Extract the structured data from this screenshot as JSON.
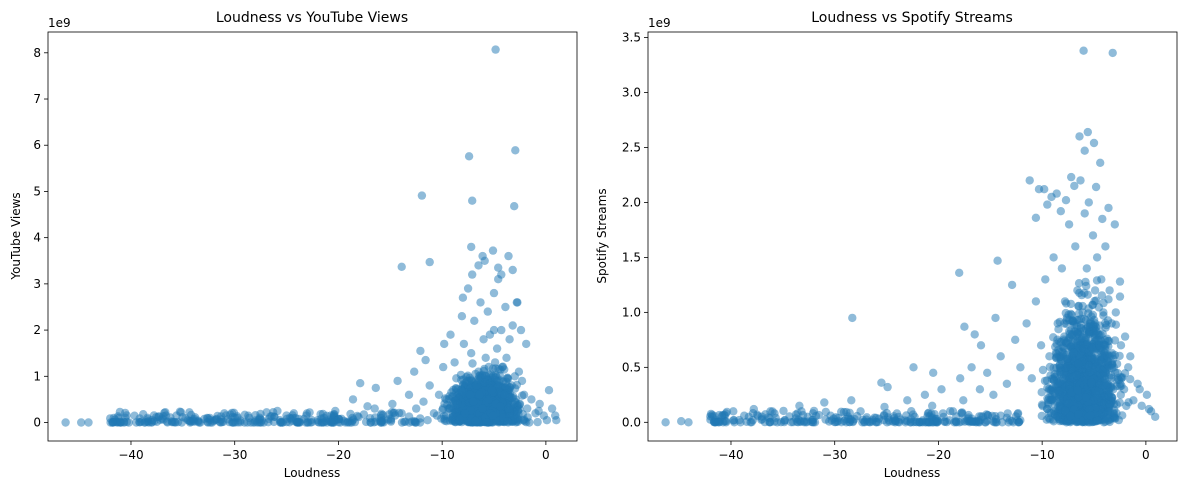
{
  "chart_data": [
    {
      "type": "scatter",
      "title": "Loudness vs YouTube Views",
      "xlabel": "Loudness",
      "ylabel": "YouTube Views",
      "y_offset_label": "1e9",
      "xlim": [
        -48,
        3
      ],
      "ylim": [
        -0.4,
        8.45
      ],
      "x_ticks": [
        -40,
        -30,
        -20,
        -10,
        0
      ],
      "x_tick_labels": [
        "−40",
        "−30",
        "−20",
        "−10",
        "0"
      ],
      "y_ticks": [
        0,
        1,
        2,
        3,
        4,
        5,
        6,
        7,
        8
      ],
      "y_tick_labels": [
        "0",
        "1",
        "2",
        "3",
        "4",
        "5",
        "6",
        "7",
        "8"
      ],
      "grid": false,
      "color": "#1f77b4",
      "alpha": 0.5,
      "points": {
        "x": [
          -46.3,
          -44.8,
          -44.1,
          -41.8,
          -41.5,
          -41.0,
          -39.2,
          -38.0,
          -36.5,
          -35.1,
          -34.0,
          -32.4,
          -31.0,
          -30.5,
          -28.6,
          -27.4,
          -25.6,
          -24.3,
          -23.1,
          -22.0,
          -21.4,
          -20.3,
          -19.7,
          -18.6,
          -17.9,
          -17.2,
          -16.5,
          -16.4,
          -15.9,
          -14.8,
          -14.3,
          -13.9,
          -13.2,
          -12.7,
          -12.5,
          -12.1,
          -11.8,
          -11.6,
          -11.2,
          -10.8,
          -10.3,
          -9.9,
          -9.6,
          -9.2,
          -8.8,
          -8.5,
          -8.1,
          -7.9,
          -7.6,
          -7.5,
          -7.3,
          -7.2,
          -7.1,
          -6.9,
          -6.7,
          -6.5,
          -6.3,
          -6.1,
          -6.0,
          -5.9,
          -5.8,
          -5.6,
          -5.5,
          -5.4,
          -5.2,
          -5.0,
          -4.9,
          -4.8,
          -4.7,
          -4.6,
          -4.5,
          -4.3,
          -4.2,
          -4.0,
          -3.9,
          -3.8,
          -3.6,
          -3.5,
          -3.3,
          -3.2,
          -3.0,
          -2.9,
          -2.8,
          -2.6,
          -2.5,
          -2.3,
          -2.1,
          -1.8,
          -1.4,
          -1.0,
          -0.6,
          -0.2,
          0.3,
          0.6,
          1.0,
          -7.0,
          -6.2,
          -5.3,
          -4.4,
          -3.4,
          -2.7,
          -8.6,
          -9.4,
          -10.5,
          -6.6,
          -5.7,
          -4.1,
          -3.7,
          -2.2,
          -1.6,
          -0.8,
          -12.9,
          -11.4,
          -9.0,
          -8.3,
          -7.8,
          -6.8,
          -6.4,
          -5.1,
          -4.85,
          -7.4,
          -2.95,
          -3.05,
          -11.95,
          -7.1,
          -2.75,
          -7.2,
          -5.1,
          -4.6,
          -13.9,
          -11.2,
          -6.1,
          -3.6,
          -6.5,
          -4.3,
          -8.0,
          -5.0,
          -3.2,
          -2.4,
          -9.8,
          -1.9,
          -0.7,
          0.1,
          0.9
        ],
        "y": [
          0.0,
          0.0,
          0.0,
          0.0,
          0.01,
          0.0,
          0.01,
          0.0,
          0.02,
          0.0,
          0.03,
          0.1,
          0.2,
          0.01,
          0.1,
          0.05,
          0.0,
          0.2,
          0.15,
          0.05,
          0.1,
          0.25,
          0.08,
          0.5,
          0.85,
          0.35,
          0.3,
          0.75,
          0.1,
          0.4,
          0.9,
          0.2,
          0.6,
          1.1,
          0.3,
          1.55,
          0.45,
          1.35,
          0.8,
          0.2,
          0.6,
          1.2,
          0.5,
          1.9,
          1.3,
          0.4,
          2.3,
          1.7,
          0.9,
          2.9,
          0.6,
          1.5,
          3.2,
          2.2,
          0.8,
          1.1,
          2.6,
          0.3,
          1.8,
          3.5,
          1.0,
          2.4,
          0.5,
          1.9,
          0.7,
          2.8,
          1.3,
          0.4,
          1.6,
          3.1,
          0.9,
          2.0,
          1.2,
          0.6,
          2.5,
          1.4,
          0.3,
          1.8,
          0.8,
          3.3,
          1.0,
          0.5,
          2.6,
          1.1,
          0.4,
          0.9,
          0.6,
          0.3,
          0.5,
          0.2,
          0.4,
          0.15,
          0.7,
          0.3,
          0.05,
          0.45,
          0.65,
          0.2,
          0.35,
          0.55,
          0.25,
          0.1,
          0.3,
          0.15,
          0.05,
          0.0,
          0.1,
          0.02,
          0.05,
          0.0,
          0.01,
          0.02,
          0.05,
          0.12,
          0.08,
          0.2,
          0.03,
          0.6,
          0.15,
          8.07,
          5.76,
          5.89,
          4.68,
          4.91,
          4.8,
          2.6,
          3.8,
          3.72,
          3.35,
          3.37,
          3.47,
          3.6,
          3.6,
          3.4,
          3.2,
          2.7,
          2.0,
          2.1,
          2.0,
          1.7,
          1.7,
          0.25,
          0.05,
          0.15
        ]
      }
    },
    {
      "type": "scatter",
      "title": "Loudness vs Spotify Streams",
      "xlabel": "Loudness",
      "ylabel": "Spotify Streams",
      "y_offset_label": "1e9",
      "xlim": [
        -48,
        3
      ],
      "ylim": [
        -0.17,
        3.55
      ],
      "x_ticks": [
        -40,
        -30,
        -20,
        -10,
        0
      ],
      "x_tick_labels": [
        "−40",
        "−30",
        "−20",
        "−10",
        "0"
      ],
      "y_ticks": [
        0,
        0.5,
        1.0,
        1.5,
        2.0,
        2.5,
        3.0,
        3.5
      ],
      "y_tick_labels": [
        "0.0",
        "0.5",
        "1.0",
        "1.5",
        "2.0",
        "2.5",
        "3.0",
        "3.5"
      ],
      "grid": false,
      "color": "#1f77b4",
      "alpha": 0.5,
      "points": {
        "x": [
          -46.3,
          -44.8,
          -44.1,
          -41.8,
          -41.5,
          -40.5,
          -39.2,
          -37.8,
          -37.0,
          -36.2,
          -34.8,
          -33.4,
          -32.6,
          -31.0,
          -30.4,
          -28.4,
          -27.5,
          -26.0,
          -25.2,
          -24.0,
          -23.0,
          -22.3,
          -21.3,
          -20.6,
          -19.7,
          -18.6,
          -17.9,
          -17.6,
          -16.8,
          -16.0,
          -15.3,
          -14.7,
          -14.0,
          -13.4,
          -12.6,
          -12.1,
          -11.5,
          -11.0,
          -10.6,
          -10.1,
          -9.7,
          -9.3,
          -8.9,
          -8.5,
          -8.1,
          -7.8,
          -7.4,
          -7.1,
          -6.8,
          -6.6,
          -6.3,
          -6.1,
          -5.9,
          -5.7,
          -5.5,
          -5.3,
          -5.1,
          -4.9,
          -4.7,
          -4.5,
          -4.3,
          -4.1,
          -3.9,
          -3.7,
          -3.5,
          -3.3,
          -3.1,
          -2.9,
          -2.7,
          -2.4,
          -2.1,
          -1.7,
          -1.2,
          -0.8,
          -0.4,
          0.1,
          0.5,
          0.9,
          -6.0,
          -3.2,
          -6.4,
          -5.6,
          -5.9,
          -4.4,
          -4.8,
          -9.8,
          -9.1,
          -8.2,
          -11.2,
          -10.6,
          -7.7,
          -7.2,
          -6.9,
          -5.0,
          -4.2,
          -3.6,
          -3.0,
          -14.3,
          -18.0,
          -12.9,
          -14.5,
          -22.4,
          -17.5,
          -15.9,
          -16.5,
          -20.5,
          -24.9,
          -25.5,
          -8.6,
          -9.5,
          -10.3,
          -2.5,
          -2.0,
          -1.5,
          -0.6,
          0.3,
          -28.3,
          -33.2
        ],
        "y": [
          0.0,
          0.01,
          0.0,
          0.05,
          0.0,
          0.08,
          0.02,
          0.12,
          0.03,
          0.1,
          0.02,
          0.15,
          0.05,
          0.18,
          0.06,
          0.2,
          0.1,
          0.04,
          0.14,
          0.08,
          0.2,
          0.05,
          0.25,
          0.15,
          0.3,
          0.1,
          0.4,
          0.2,
          0.5,
          0.3,
          0.45,
          0.25,
          0.6,
          0.35,
          0.75,
          0.5,
          0.9,
          0.4,
          1.1,
          0.7,
          1.3,
          0.6,
          1.5,
          0.9,
          1.4,
          1.1,
          1.8,
          0.8,
          1.6,
          1.2,
          2.2,
          1.0,
          1.9,
          1.4,
          2.0,
          0.9,
          1.7,
          1.2,
          1.5,
          0.7,
          1.3,
          1.0,
          1.6,
          0.6,
          1.2,
          0.9,
          0.5,
          1.0,
          0.4,
          0.7,
          0.3,
          0.5,
          0.2,
          0.35,
          0.15,
          0.25,
          0.1,
          0.05,
          3.38,
          3.36,
          2.6,
          2.64,
          2.47,
          2.36,
          2.14,
          2.12,
          2.05,
          1.92,
          2.2,
          1.86,
          2.02,
          2.23,
          2.15,
          2.54,
          1.85,
          1.95,
          1.8,
          1.47,
          1.36,
          1.25,
          0.95,
          0.5,
          0.87,
          0.7,
          0.8,
          0.45,
          0.32,
          0.36,
          2.08,
          1.98,
          2.12,
          1.28,
          0.78,
          0.6,
          0.3,
          0.12,
          0.95,
          0.1
        ]
      }
    }
  ]
}
